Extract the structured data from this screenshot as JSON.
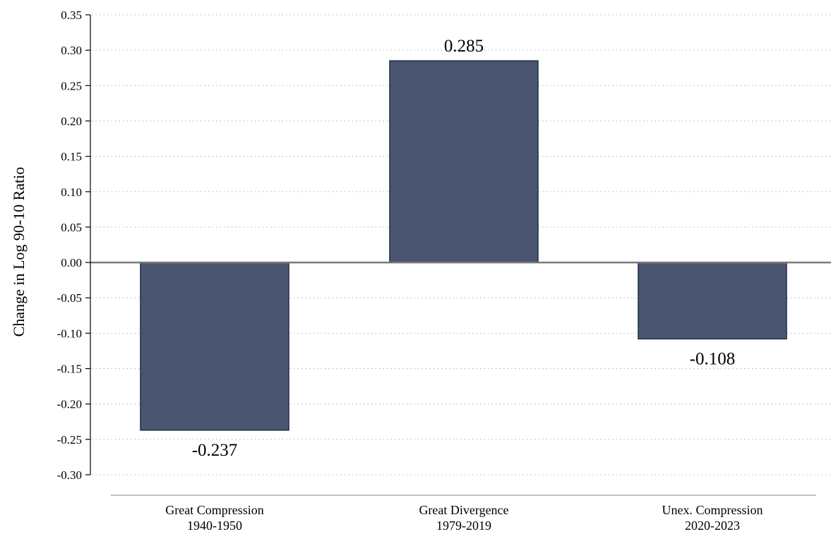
{
  "chart_data": {
    "type": "bar",
    "title": "",
    "xlabel": "",
    "ylabel": "Change in Log 90-10 Ratio",
    "ylim": [
      -0.3,
      0.35
    ],
    "yticks": [
      "0.35",
      "0.30",
      "0.25",
      "0.20",
      "0.15",
      "0.10",
      "0.05",
      "0.00",
      "-0.05",
      "-0.10",
      "-0.15",
      "-0.20",
      "-0.25",
      "-0.30"
    ],
    "ytick_values": [
      0.35,
      0.3,
      0.25,
      0.2,
      0.15,
      0.1,
      0.05,
      0.0,
      -0.05,
      -0.1,
      -0.15,
      -0.2,
      -0.25,
      -0.3
    ],
    "categories": [
      {
        "name": "Great Compression",
        "period": "1940-1950"
      },
      {
        "name": "Great Divergence",
        "period": "1979-2019"
      },
      {
        "name": "Unex. Compression",
        "period": "2020-2023"
      }
    ],
    "values": [
      -0.237,
      0.285,
      -0.108
    ],
    "data_labels": [
      "-0.237",
      "0.285",
      "-0.108"
    ],
    "grid": "horizontal dotted",
    "legend": "none",
    "colors": {
      "bar": "#4a5572",
      "bar_edge": "#1f2a44",
      "zero_line": "#7a7a7a",
      "grid": "#b0b0b0",
      "axis": "#000000"
    }
  }
}
